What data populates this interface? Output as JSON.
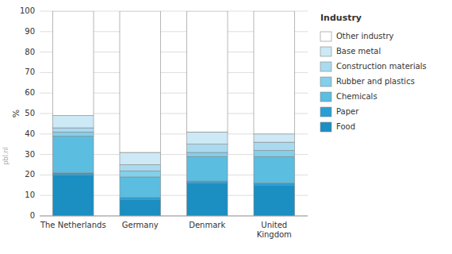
{
  "chart_data": {
    "type": "bar",
    "stacked": true,
    "categories": [
      "The Netherlands",
      "Germany",
      "Denmark",
      "United\nKingdom"
    ],
    "series": [
      {
        "name": "Food",
        "color": "#1b8ec2",
        "values": [
          20,
          8,
          16,
          15
        ]
      },
      {
        "name": "Paper",
        "color": "#2a9fd4",
        "values": [
          1,
          1,
          1,
          1
        ]
      },
      {
        "name": "Chemicals",
        "color": "#5bbde0",
        "values": [
          18,
          10,
          12,
          13
        ]
      },
      {
        "name": "Rubber and plastics",
        "color": "#84cfe9",
        "values": [
          2,
          3,
          2,
          3
        ]
      },
      {
        "name": "Construction materials",
        "color": "#aadaf0",
        "values": [
          2,
          3,
          4,
          4
        ]
      },
      {
        "name": "Base metal",
        "color": "#cce9f5",
        "values": [
          6,
          6,
          6,
          4
        ]
      },
      {
        "name": "Other industry",
        "color": "#ffffff",
        "values": [
          51,
          69,
          59,
          60
        ]
      }
    ],
    "legend_title": "Industry",
    "legend": "right",
    "y_label": "%",
    "annotations": [
      {
        "text": "pbl.nl"
      }
    ],
    "ylim": [
      0,
      100
    ],
    "yticks": [
      0,
      10,
      20,
      30,
      40,
      50,
      60,
      70,
      80,
      90,
      100
    ],
    "grid": true
  }
}
